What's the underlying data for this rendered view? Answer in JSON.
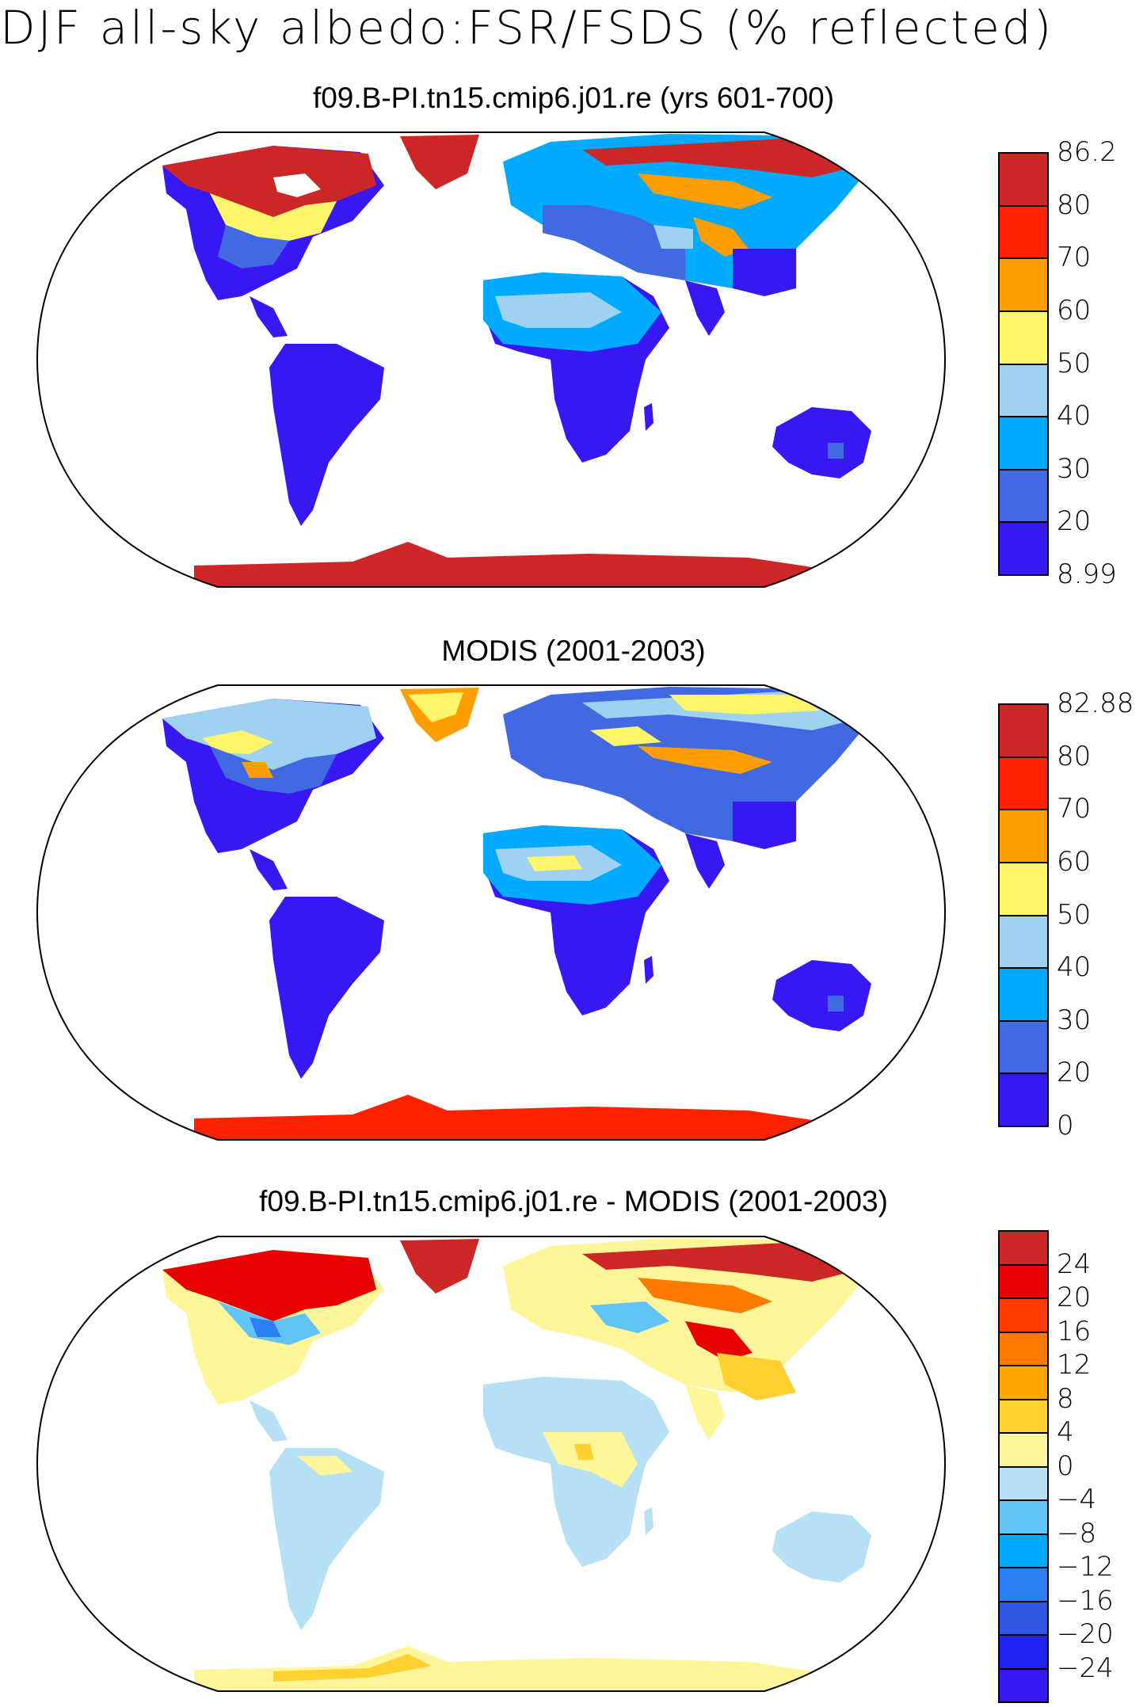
{
  "figure": {
    "title": "DJF all-sky albedo:FSR/FSDS (% reflected)"
  },
  "panels": [
    {
      "title": "f09.B-PI.tn15.cmip6.j01.re (yrs 601-700)",
      "colorbar": {
        "labels": [
          "86.2",
          "80",
          "70",
          "60",
          "50",
          "40",
          "30",
          "20",
          "8.99"
        ],
        "colors": [
          "#cd2626",
          "#ff2200",
          "#ff9e00",
          "#fff56a",
          "#9ed2f0",
          "#00aaff",
          "#4169e1",
          "#3718f2"
        ]
      }
    },
    {
      "title": "MODIS (2001-2003)",
      "colorbar": {
        "labels": [
          "82.88",
          "80",
          "70",
          "60",
          "50",
          "40",
          "30",
          "20",
          "0"
        ],
        "colors": [
          "#cd2626",
          "#ff2200",
          "#ff9e00",
          "#fff56a",
          "#9ed2f0",
          "#00aaff",
          "#4169e1",
          "#3718f2"
        ]
      }
    },
    {
      "title": "f09.B-PI.tn15.cmip6.j01.re - MODIS (2001-2003)",
      "colorbar": {
        "labels": [
          "24",
          "20",
          "16",
          "12",
          "8",
          "4",
          "0",
          "−4",
          "−8",
          "−12",
          "−16",
          "−20",
          "−24"
        ],
        "colors": [
          "#cd2626",
          "#e80000",
          "#ff3a00",
          "#ff7a00",
          "#ffa600",
          "#ffd030",
          "#fff69a",
          "#b6e0f5",
          "#62c4f4",
          "#00aaff",
          "#2a80f0",
          "#2f55e3",
          "#2222f0",
          "#3718f2"
        ]
      }
    }
  ]
}
